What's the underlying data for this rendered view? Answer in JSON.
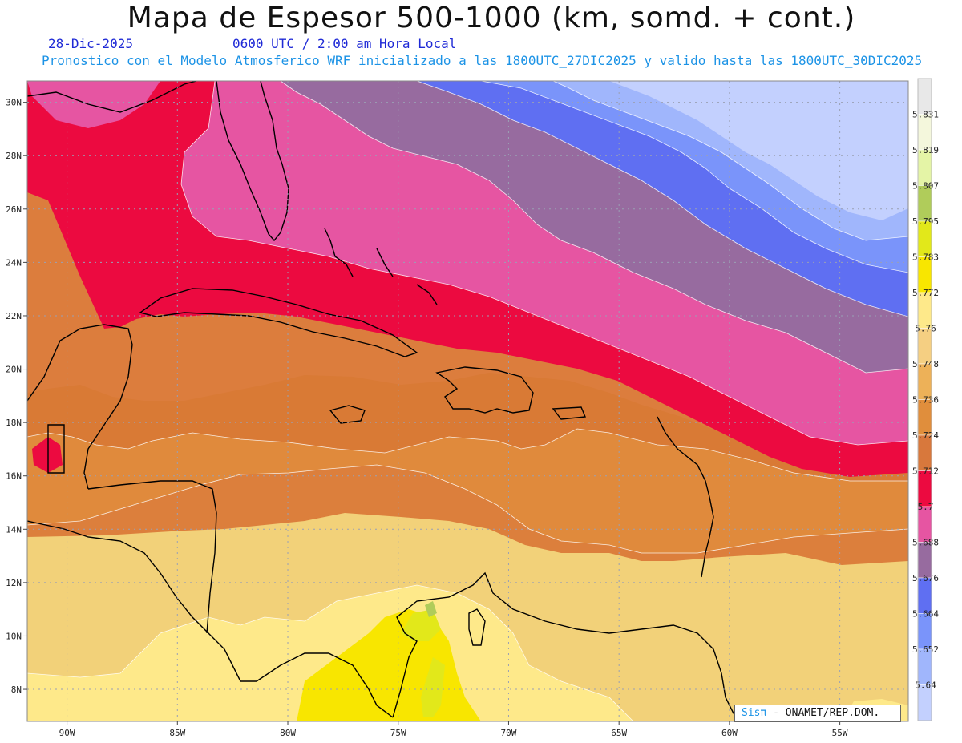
{
  "header": {
    "title": "Mapa de Espesor 500-1000 (km, somd. + cont.)",
    "date": "28-Dic-2025",
    "time": "0600 UTC / 2:00 am Hora Local",
    "forecast": "Pronostico con el Modelo Atmosferico WRF inicializado a las 1800UTC_27DIC2025 y valido hasta las  1800UTC_30DIC2025"
  },
  "map": {
    "lat_labels": [
      "30N",
      "28N",
      "26N",
      "24N",
      "22N",
      "20N",
      "18N",
      "16N",
      "14N",
      "12N",
      "10N",
      "8N"
    ],
    "lon_labels": [
      "90W",
      "85W",
      "80W",
      "75W",
      "70W",
      "65W",
      "60W",
      "55W"
    ],
    "lat_values": [
      30,
      28,
      26,
      24,
      22,
      20,
      18,
      16,
      14,
      12,
      10,
      8
    ],
    "lon_values": [
      -90,
      -85,
      -80,
      -75,
      -70,
      -65,
      -60,
      -55
    ],
    "lat_range": [
      6.8,
      30.8
    ],
    "lon_range": [
      -91.8,
      -51.9
    ]
  },
  "colorbar": {
    "labels": [
      "5.831",
      "5.819",
      "5.807",
      "5.795",
      "5.783",
      "5.772",
      "5.76",
      "5.748",
      "5.736",
      "5.724",
      "5.712",
      "5.7",
      "5.688",
      "5.676",
      "5.664",
      "5.652",
      "5.64"
    ],
    "colors": [
      "#e8e8e8",
      "#f4f7dc",
      "#e4f4a6",
      "#b0cc5a",
      "#e2e81a",
      "#f8e600",
      "#fee98a",
      "#f5cf82",
      "#edb158",
      "#e08e3c",
      "#d8783c",
      "#ec0a40",
      "#e655a2",
      "#976b9f",
      "#5f6ff2",
      "#7a94fa",
      "#a0b6fc",
      "#c3d0fe"
    ]
  },
  "credit": {
    "brand": "Sisπ",
    "text": " - ONAMET/REP.DOM."
  }
}
